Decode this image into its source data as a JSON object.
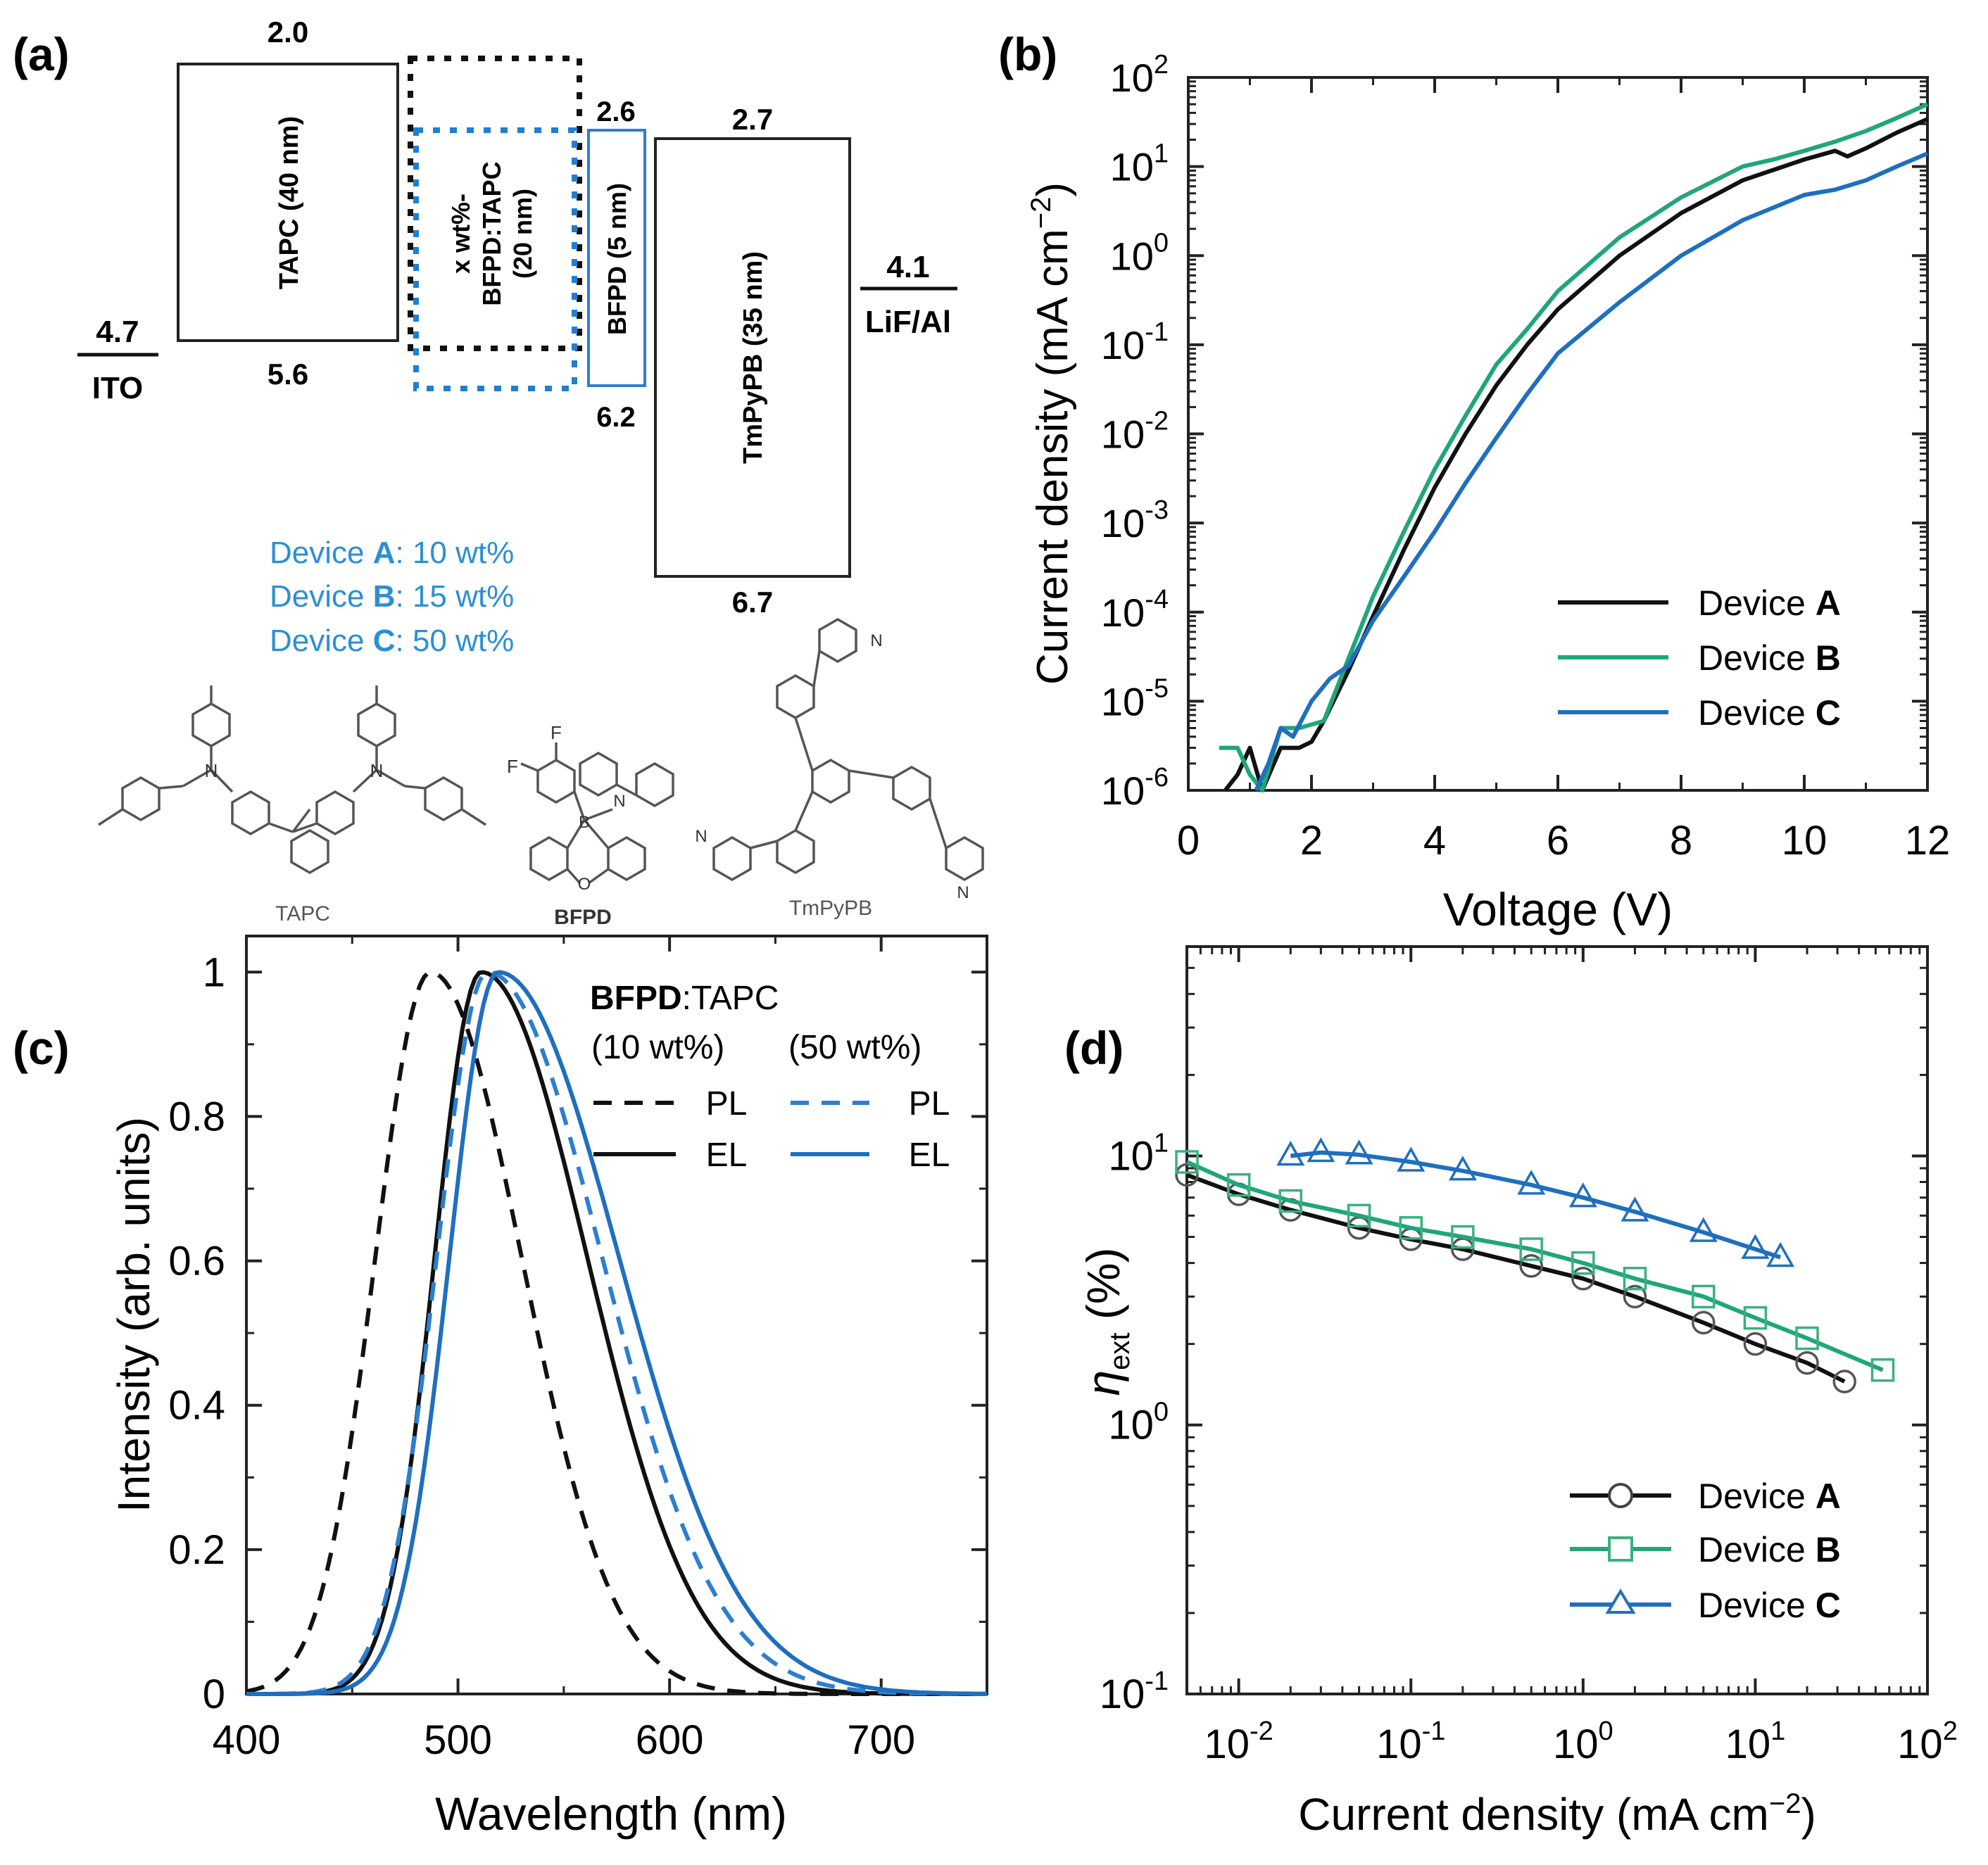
{
  "colors": {
    "black": "#111111",
    "green": "#1fa67a",
    "blue": "#1f6fbf",
    "blue_text": "#2b8fd3"
  },
  "panel_a": {
    "label": "(a)",
    "ito": {
      "value": "4.7",
      "name": "ITO"
    },
    "lifal": {
      "value": "4.1",
      "name": "LiF/Al"
    },
    "tapc": {
      "lumo": "2.0",
      "homo": "5.6",
      "label": "TAPC (40 nm)"
    },
    "eml": {
      "line1": "x wt%-",
      "line2": "BFPD:TAPC",
      "line3": "(20 nm)"
    },
    "bfpd": {
      "lumo": "2.6",
      "homo": "6.2",
      "label": "BFPD (5 nm)"
    },
    "tmpypb": {
      "lumo": "2.7",
      "homo": "6.7",
      "label": "TmPyPB (35 nm)"
    },
    "devices": [
      {
        "prefix": "Device ",
        "letter": "A",
        "suffix": ": 10 wt%"
      },
      {
        "prefix": "Device ",
        "letter": "B",
        "suffix": ": 15 wt%"
      },
      {
        "prefix": "Device ",
        "letter": "C",
        "suffix": ": 50 wt%"
      }
    ],
    "molecules": {
      "tapc": "TAPC",
      "bfpd": "BFPD",
      "tmpypb": "TmPyPB",
      "atom_n": "N",
      "atom_f": "F",
      "atom_b": "B",
      "atom_o": "O"
    }
  },
  "chart_data": [
    {
      "id": "b",
      "label": "(b)",
      "type": "line",
      "xlabel": "Voltage (V)",
      "ylabel": "Current density (mA cm",
      "ylabel_sup": "−2",
      "ylabel_end": ")",
      "xlim": [
        0,
        12
      ],
      "ylim": [
        1e-06,
        100
      ],
      "yscale": "log",
      "x_ticks": [
        "0",
        "2",
        "4",
        "6",
        "8",
        "10",
        "12"
      ],
      "y_ticks": [
        {
          "base": "10",
          "exp": "-6"
        },
        {
          "base": "10",
          "exp": "-5"
        },
        {
          "base": "10",
          "exp": "-4"
        },
        {
          "base": "10",
          "exp": "-3"
        },
        {
          "base": "10",
          "exp": "-2"
        },
        {
          "base": "10",
          "exp": "-1"
        },
        {
          "base": "10",
          "exp": "0"
        },
        {
          "base": "10",
          "exp": "1"
        },
        {
          "base": "10",
          "exp": "2"
        }
      ],
      "legend": {
        "position": "lower-right",
        "entries": [
          {
            "prefix": "Device ",
            "letter": "A"
          },
          {
            "prefix": "Device ",
            "letter": "B"
          },
          {
            "prefix": "Device ",
            "letter": "C"
          }
        ]
      },
      "series": [
        {
          "name": "Device A",
          "x": [
            0.6,
            0.8,
            1.0,
            1.2,
            1.5,
            1.8,
            2.0,
            2.2,
            2.6,
            3.0,
            3.5,
            4.0,
            4.5,
            5.0,
            5.5,
            6.0,
            7.0,
            8.0,
            9.0,
            10.0,
            10.5,
            10.7,
            11.0,
            11.5,
            12.0
          ],
          "y": [
            8e-07,
            1.5e-06,
            3e-06,
            8e-07,
            3e-06,
            3e-06,
            3.5e-06,
            6e-06,
            2.2e-05,
            9e-05,
            0.0005,
            0.0025,
            0.01,
            0.035,
            0.1,
            0.25,
            1.0,
            3.0,
            7.0,
            12.0,
            15.0,
            13.0,
            16.0,
            24.0,
            34.0
          ]
        },
        {
          "name": "Device B",
          "x": [
            0.5,
            0.8,
            1.0,
            1.2,
            1.5,
            1.8,
            2.2,
            2.6,
            3.0,
            3.5,
            4.0,
            4.5,
            5.0,
            5.5,
            6.0,
            7.0,
            8.0,
            9.0,
            9.5,
            10.0,
            10.5,
            11.0,
            11.5,
            12.0
          ],
          "y": [
            3e-06,
            3e-06,
            1.5e-06,
            8e-07,
            5e-06,
            5e-06,
            6e-06,
            3e-05,
            0.00015,
            0.0008,
            0.004,
            0.016,
            0.06,
            0.15,
            0.4,
            1.6,
            4.5,
            10.0,
            12.0,
            15.0,
            19.0,
            25.0,
            35.0,
            50.0
          ]
        },
        {
          "name": "Device C",
          "x": [
            1.1,
            1.3,
            1.5,
            1.7,
            2.0,
            2.3,
            2.6,
            3.0,
            3.5,
            4.0,
            4.5,
            5.0,
            5.5,
            6.0,
            7.0,
            8.0,
            9.0,
            10.0,
            10.5,
            11.0,
            11.5,
            12.0
          ],
          "y": [
            8e-07,
            2e-06,
            5e-06,
            4e-06,
            1e-05,
            1.8e-05,
            2.5e-05,
            8e-05,
            0.00025,
            0.0008,
            0.0028,
            0.009,
            0.028,
            0.08,
            0.3,
            1.0,
            2.5,
            4.8,
            5.5,
            7.0,
            10.0,
            14.0
          ]
        }
      ]
    },
    {
      "id": "c",
      "label": "(c)",
      "type": "line",
      "xlabel": "Wavelength (nm)",
      "ylabel": "Intensity (arb. units)",
      "xlim": [
        400,
        750
      ],
      "ylim": [
        0,
        1.05
      ],
      "x_ticks": [
        "400",
        "500",
        "600",
        "700"
      ],
      "y_ticks": [
        "0",
        "0.2",
        "0.4",
        "0.6",
        "0.8",
        "1"
      ],
      "legend": {
        "position": "top-right",
        "title_bold": "BFPD",
        "title_rest": ":TAPC",
        "col1": "(10 wt%)",
        "col2": "(50 wt%)",
        "pl": "PL",
        "el": "EL"
      },
      "series": [
        {
          "name": "PL 10 wt%",
          "peak": 487,
          "w_left": 26,
          "w_right": 43
        },
        {
          "name": "EL 10 wt%",
          "peak": 511,
          "w_left": 22,
          "w_right": 50
        },
        {
          "name": "PL 50 wt%",
          "peak": 514,
          "w_left": 24,
          "w_right": 54
        },
        {
          "name": "EL 50 wt%",
          "peak": 519,
          "w_left": 23,
          "w_right": 57
        }
      ]
    },
    {
      "id": "d",
      "label": "(d)",
      "type": "scatter",
      "xlabel": "Current density (mA cm",
      "xlabel_sup": "−2",
      "xlabel_end": ")",
      "ylabel_main": "η",
      "ylabel_sub": "ext",
      "ylabel_end": " (%)",
      "xlim": [
        0.005,
        100
      ],
      "ylim": [
        0.1,
        60
      ],
      "xscale": "log",
      "yscale": "log",
      "x_ticks": [
        {
          "base": "10",
          "exp": "-2"
        },
        {
          "base": "10",
          "exp": "-1"
        },
        {
          "base": "10",
          "exp": "0"
        },
        {
          "base": "10",
          "exp": "1"
        },
        {
          "base": "10",
          "exp": "2"
        }
      ],
      "y_ticks": [
        {
          "base": "10",
          "exp": "-1"
        },
        {
          "base": "10",
          "exp": "0"
        },
        {
          "base": "10",
          "exp": "1"
        }
      ],
      "legend": {
        "position": "lower-right",
        "entries": [
          {
            "prefix": "Device ",
            "letter": "A"
          },
          {
            "prefix": "Device ",
            "letter": "B"
          },
          {
            "prefix": "Device ",
            "letter": "C"
          }
        ]
      },
      "series": [
        {
          "name": "Device A",
          "marker": "circle",
          "x": [
            0.005,
            0.01,
            0.02,
            0.05,
            0.1,
            0.2,
            0.5,
            1,
            2,
            5,
            10,
            20,
            33
          ],
          "y": [
            8.5,
            7.2,
            6.3,
            5.4,
            4.9,
            4.5,
            3.9,
            3.5,
            3.0,
            2.4,
            2.0,
            1.7,
            1.45
          ]
        },
        {
          "name": "Device B",
          "marker": "square",
          "x": [
            0.005,
            0.01,
            0.02,
            0.05,
            0.1,
            0.2,
            0.5,
            1,
            2,
            5,
            10,
            20,
            55
          ],
          "y": [
            9.5,
            7.8,
            6.8,
            6.0,
            5.4,
            5.0,
            4.5,
            4.0,
            3.5,
            3.0,
            2.5,
            2.1,
            1.6
          ]
        },
        {
          "name": "Device C",
          "marker": "triangle",
          "x": [
            0.02,
            0.03,
            0.05,
            0.1,
            0.2,
            0.5,
            1,
            2,
            5,
            10,
            14
          ],
          "y": [
            10.0,
            10.3,
            10.1,
            9.5,
            8.8,
            7.8,
            7.0,
            6.2,
            5.2,
            4.5,
            4.2
          ]
        }
      ]
    }
  ]
}
